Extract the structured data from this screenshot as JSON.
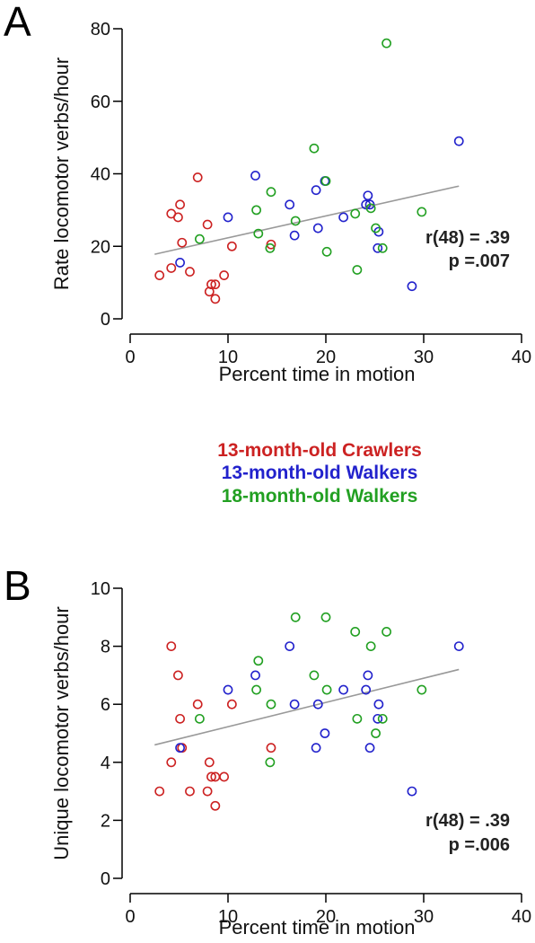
{
  "colors": {
    "crawlers13": "#cc2222",
    "walkers13": "#2222cc",
    "walkers18": "#22a022"
  },
  "legend": {
    "crawlers13": "13-month-old Crawlers",
    "walkers13": "13-month-old Walkers",
    "walkers18": "18-month-old Walkers"
  },
  "chart_data": [
    {
      "type": "scatter",
      "panel": "A",
      "xlabel": "Percent time in motion",
      "ylabel": "Rate locomotor verbs/hour",
      "xlim": [
        0,
        40
      ],
      "ylim": [
        0,
        80
      ],
      "xticks": [
        "0",
        "10",
        "20",
        "30",
        "40"
      ],
      "yticks": [
        "0",
        "20",
        "40",
        "60",
        "80"
      ],
      "stat_r": "r(48) = .39",
      "stat_p": "p =.007",
      "fit_line": [
        [
          2.5,
          17.8
        ],
        [
          33.6,
          36.6
        ]
      ],
      "series": [
        {
          "name": "13-month-old Crawlers",
          "color_key": "crawlers13",
          "points": [
            [
              3.0,
              12
            ],
            [
              4.2,
              14
            ],
            [
              4.2,
              29
            ],
            [
              4.9,
              28
            ],
            [
              5.1,
              31.5
            ],
            [
              5.3,
              21
            ],
            [
              6.1,
              13
            ],
            [
              6.9,
              39
            ],
            [
              7.9,
              26
            ],
            [
              8.1,
              7.5
            ],
            [
              8.3,
              9.5
            ],
            [
              8.7,
              9.5
            ],
            [
              8.7,
              5.5
            ],
            [
              9.6,
              12
            ],
            [
              10.4,
              20
            ],
            [
              14.4,
              20.5
            ]
          ]
        },
        {
          "name": "13-month-old Walkers",
          "color_key": "walkers13",
          "points": [
            [
              5.1,
              15.5
            ],
            [
              10.0,
              28
            ],
            [
              12.8,
              39.5
            ],
            [
              16.3,
              31.5
            ],
            [
              16.8,
              23
            ],
            [
              19.0,
              35.5
            ],
            [
              19.2,
              25
            ],
            [
              19.9,
              38
            ],
            [
              21.8,
              28
            ],
            [
              24.1,
              31.5
            ],
            [
              24.3,
              34
            ],
            [
              24.5,
              31.5
            ],
            [
              25.3,
              19.5
            ],
            [
              25.4,
              24
            ],
            [
              28.8,
              9
            ],
            [
              33.6,
              49
            ]
          ]
        },
        {
          "name": "18-month-old Walkers",
          "color_key": "walkers18",
          "points": [
            [
              7.1,
              22
            ],
            [
              13.1,
              23.5
            ],
            [
              12.9,
              30
            ],
            [
              14.3,
              19.5
            ],
            [
              14.4,
              35
            ],
            [
              16.9,
              27
            ],
            [
              18.8,
              47
            ],
            [
              20.0,
              38
            ],
            [
              20.1,
              18.5
            ],
            [
              23.0,
              29
            ],
            [
              23.2,
              13.5
            ],
            [
              24.6,
              30.5
            ],
            [
              25.1,
              25
            ],
            [
              25.8,
              19.5
            ],
            [
              26.2,
              76
            ],
            [
              29.8,
              29.5
            ]
          ]
        }
      ]
    },
    {
      "type": "scatter",
      "panel": "B",
      "xlabel": "Percent time in motion",
      "ylabel": "Unique locomotor verbs/hour",
      "xlim": [
        0,
        40
      ],
      "ylim": [
        0,
        10
      ],
      "xticks": [
        "0",
        "10",
        "20",
        "30",
        "40"
      ],
      "yticks": [
        "0",
        "2",
        "4",
        "6",
        "8",
        "10"
      ],
      "stat_r": "r(48) = .39",
      "stat_p": "p =.006",
      "fit_line": [
        [
          2.5,
          4.6
        ],
        [
          33.6,
          7.2
        ]
      ],
      "series": [
        {
          "name": "13-month-old Crawlers",
          "color_key": "crawlers13",
          "points": [
            [
              3.0,
              3
            ],
            [
              4.2,
              4
            ],
            [
              4.2,
              8
            ],
            [
              4.9,
              7
            ],
            [
              5.1,
              5.5
            ],
            [
              5.3,
              4.5
            ],
            [
              6.1,
              3
            ],
            [
              6.9,
              6
            ],
            [
              7.9,
              3
            ],
            [
              8.1,
              4
            ],
            [
              8.3,
              3.5
            ],
            [
              8.7,
              3.5
            ],
            [
              8.7,
              2.5
            ],
            [
              9.6,
              3.5
            ],
            [
              10.4,
              6
            ],
            [
              14.4,
              4.5
            ]
          ]
        },
        {
          "name": "13-month-old Walkers",
          "color_key": "walkers13",
          "points": [
            [
              5.1,
              4.5
            ],
            [
              10.0,
              6.5
            ],
            [
              12.8,
              7
            ],
            [
              16.3,
              8
            ],
            [
              16.8,
              6
            ],
            [
              19.0,
              4.5
            ],
            [
              19.2,
              6
            ],
            [
              19.9,
              5
            ],
            [
              21.8,
              6.5
            ],
            [
              24.1,
              6.5
            ],
            [
              24.3,
              7
            ],
            [
              24.5,
              4.5
            ],
            [
              25.3,
              5.5
            ],
            [
              25.4,
              6
            ],
            [
              28.8,
              3
            ],
            [
              33.6,
              8
            ]
          ]
        },
        {
          "name": "18-month-old Walkers",
          "color_key": "walkers18",
          "points": [
            [
              7.1,
              5.5
            ],
            [
              13.1,
              7.5
            ],
            [
              12.9,
              6.5
            ],
            [
              14.3,
              4
            ],
            [
              14.4,
              6
            ],
            [
              16.9,
              9
            ],
            [
              18.8,
              7
            ],
            [
              20.0,
              9
            ],
            [
              20.1,
              6.5
            ],
            [
              23.0,
              8.5
            ],
            [
              23.2,
              5.5
            ],
            [
              24.6,
              8
            ],
            [
              25.1,
              5
            ],
            [
              25.8,
              5.5
            ],
            [
              26.2,
              8.5
            ],
            [
              29.8,
              6.5
            ]
          ]
        }
      ]
    }
  ]
}
